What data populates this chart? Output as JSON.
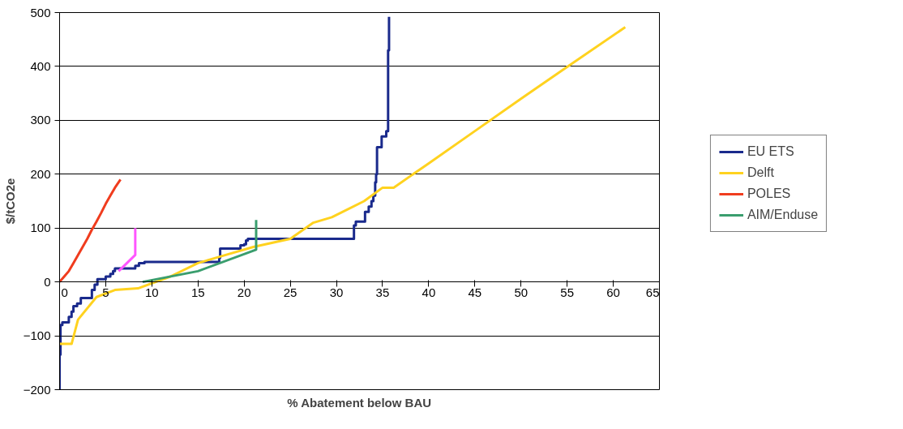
{
  "chart_data": {
    "type": "line",
    "xlabel": "% Abatement below BAU",
    "ylabel": "$/tCO2e",
    "xlim": [
      0,
      65
    ],
    "ylim": [
      -200,
      500
    ],
    "xticks": [
      0,
      5,
      10,
      15,
      20,
      25,
      30,
      35,
      40,
      45,
      50,
      55,
      60,
      65
    ],
    "yticks": [
      -200,
      -100,
      0,
      100,
      200,
      300,
      400,
      500
    ],
    "grid": "y",
    "legend": "right",
    "line_style": "solid",
    "marker": "none",
    "series": [
      {
        "name": "EU ETS",
        "type": "step",
        "color": "#1a2a8c",
        "x": [
          0,
          0,
          0.1,
          0.3,
          0.9,
          1,
          1.3,
          1.5,
          1.9,
          2.3,
          3.4,
          3.5,
          3.8,
          4.1,
          4.6,
          5,
          5.5,
          5.8,
          6,
          8,
          8.2,
          8.6,
          9.2,
          17.2,
          17.3,
          17.4,
          19.5,
          19.6,
          20,
          20.2,
          20.4,
          31.8,
          31.9,
          32.1,
          33,
          33.1,
          33.5,
          33.8,
          34,
          34.2,
          34.3,
          34.4,
          34.8,
          34.9,
          35.4,
          35.4,
          35.6,
          35.7,
          35.7
        ],
        "values": [
          -200,
          -135,
          -80,
          -75,
          -75,
          -65,
          -55,
          -45,
          -40,
          -30,
          -30,
          -15,
          -5,
          5,
          5,
          10,
          15,
          20,
          25,
          25,
          30,
          35,
          37,
          37,
          45,
          62,
          62,
          68,
          70,
          77,
          80,
          80,
          105,
          112,
          112,
          130,
          140,
          150,
          160,
          185,
          200,
          250,
          250,
          270,
          270,
          280,
          430,
          440,
          492
        ]
      },
      {
        "name": "Delft",
        "color": "#ffd21f",
        "x": [
          0,
          1.3,
          2,
          4,
          6,
          8.5,
          12,
          15,
          18,
          21,
          25,
          27.5,
          29.5,
          33,
          35,
          36.2,
          40,
          45,
          50,
          55,
          61.3
        ],
        "values": [
          -115,
          -115,
          -70,
          -28,
          -15,
          -12,
          10,
          35,
          50,
          65,
          80,
          110,
          120,
          150,
          175,
          175,
          220,
          280,
          340,
          399,
          473
        ]
      },
      {
        "name": "POLES",
        "color": "#f03c1e",
        "x": [
          0,
          0.5,
          1,
          1.5,
          2,
          2.5,
          3,
          3.5,
          4,
          4.5,
          5,
          5.5,
          6,
          6.6
        ],
        "values": [
          0,
          10,
          20,
          35,
          50,
          65,
          80,
          97,
          112,
          128,
          145,
          160,
          175,
          190
        ]
      },
      {
        "color": "#ff55ff",
        "x": [
          6.4,
          8.2,
          8.2,
          8.2
        ],
        "values": [
          20,
          50,
          50,
          100
        ]
      },
      {
        "name": "AIM/Enduse",
        "color": "#3a9e6e",
        "x": [
          9,
          15,
          21.3,
          21.3
        ],
        "values": [
          0,
          20,
          60,
          115
        ]
      }
    ]
  }
}
